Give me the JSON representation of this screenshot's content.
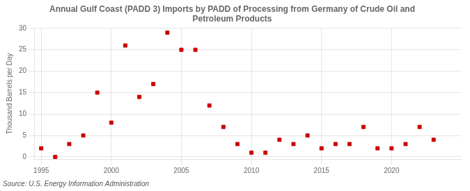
{
  "chart_data": {
    "type": "scatter",
    "title": "Annual Gulf Coast (PADD 3) Imports by PADD of Processing from Germany of Crude Oil and\nPetroleum Products",
    "ylabel": "Thousand Barrels per Day",
    "annotations": [
      "Source: U.S. Energy Information Administration"
    ],
    "x": [
      1995,
      1996,
      1997,
      1998,
      1999,
      2000,
      2001,
      2002,
      2003,
      2004,
      2005,
      2006,
      2007,
      2008,
      2009,
      2010,
      2011,
      2012,
      2013,
      2014,
      2015,
      2016,
      2017,
      2018,
      2019,
      2020,
      2021,
      2022,
      2023
    ],
    "values": [
      2,
      0,
      3,
      5,
      15,
      8,
      26,
      14,
      17,
      29,
      25,
      25,
      12,
      7,
      3,
      1,
      1,
      4,
      3,
      5,
      2,
      3,
      3,
      7,
      2,
      2,
      3,
      7,
      4
    ],
    "color": "#cc0000",
    "marker": "square",
    "xlim": [
      1994.5,
      2025
    ],
    "ylim": [
      -0.5,
      30
    ],
    "xticks": [
      1995,
      2000,
      2005,
      2010,
      2015,
      2020
    ],
    "yticks": [
      0,
      5,
      10,
      15,
      20,
      25,
      30
    ],
    "grid": true
  }
}
